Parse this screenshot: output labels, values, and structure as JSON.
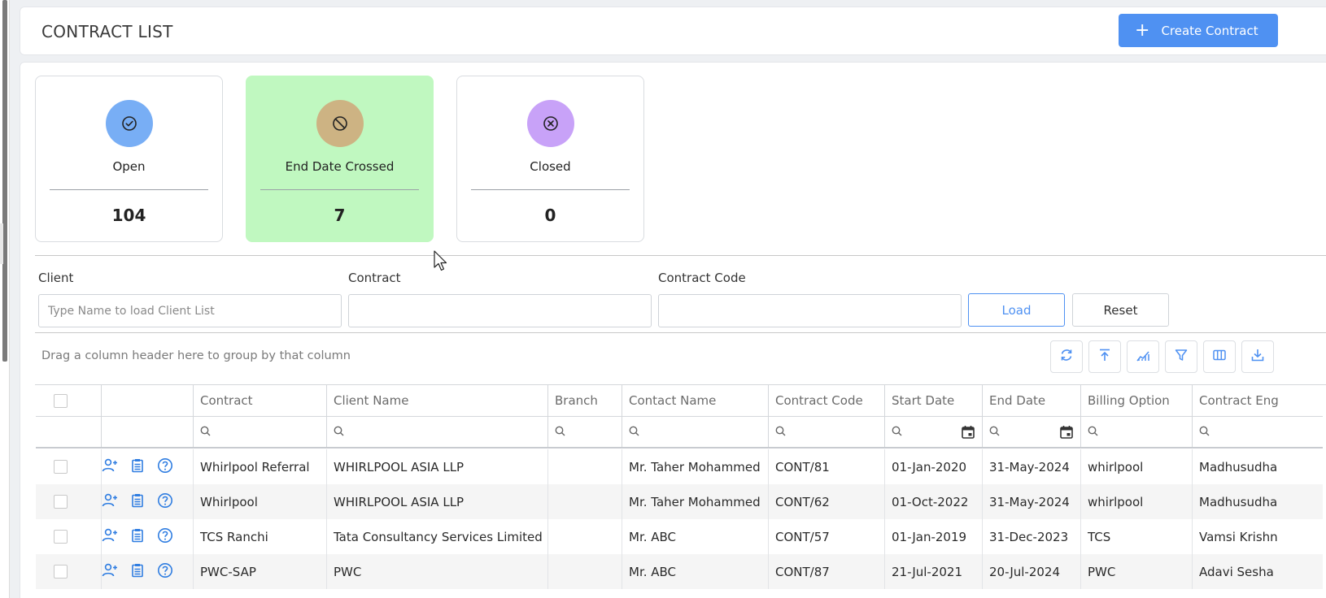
{
  "page": {
    "title": "CONTRACT LIST",
    "create_label": "Create Contract",
    "accent": "#4f91f2"
  },
  "stats": [
    {
      "label": "Open",
      "count": "104",
      "icon": "check-circle-icon",
      "color": "#78aef5"
    },
    {
      "label": "End Date Crossed",
      "count": "7",
      "icon": "ban-icon",
      "color": "#cdb383",
      "background": "#c0f8c0"
    },
    {
      "label": "Closed",
      "count": "0",
      "icon": "x-circle-icon",
      "color": "#c8a2f8"
    }
  ],
  "filters": {
    "client_label": "Client",
    "client_placeholder": "Type Name to load Client List",
    "contract_label": "Contract",
    "contract_code_label": "Contract Code",
    "load_label": "Load",
    "reset_label": "Reset"
  },
  "grid": {
    "group_hint": "Drag a column header here to group by that column",
    "toolbar_icons": [
      "refresh-icon",
      "upload-icon",
      "chart-icon",
      "filter-icon",
      "columns-icon",
      "download-icon"
    ],
    "columns": [
      "Contract",
      "Client Name",
      "Branch",
      "Contact Name",
      "Contract Code",
      "Start Date",
      "End Date",
      "Billing Option",
      "Contract Eng"
    ],
    "rows": [
      {
        "contract": "Whirlpool Referral",
        "client": "WHIRLPOOL ASIA LLP",
        "branch": "",
        "contact": "Mr. Taher Mohammed",
        "code": "CONT/81",
        "start": "01-Jan-2020",
        "end": "31-May-2024",
        "billing": "whirlpool",
        "engineer": "Madhusudha"
      },
      {
        "contract": "Whirlpool",
        "client": "WHIRLPOOL ASIA LLP",
        "branch": "",
        "contact": "Mr. Taher Mohammed",
        "code": "CONT/62",
        "start": "01-Oct-2022",
        "end": "31-May-2024",
        "billing": "whirlpool",
        "engineer": "Madhusudha"
      },
      {
        "contract": "TCS Ranchi",
        "client": "Tata Consultancy Services Limited",
        "branch": "",
        "contact": "Mr. ABC",
        "code": "CONT/57",
        "start": "01-Jan-2019",
        "end": "31-Dec-2023",
        "billing": "TCS",
        "engineer": "Vamsi Krishn"
      },
      {
        "contract": "PWC-SAP",
        "client": "PWC",
        "branch": "",
        "contact": "Mr. ABC",
        "code": "CONT/87",
        "start": "21-Jul-2021",
        "end": "20-Jul-2024",
        "billing": "PWC",
        "engineer": "Adavi Sesha"
      }
    ]
  }
}
